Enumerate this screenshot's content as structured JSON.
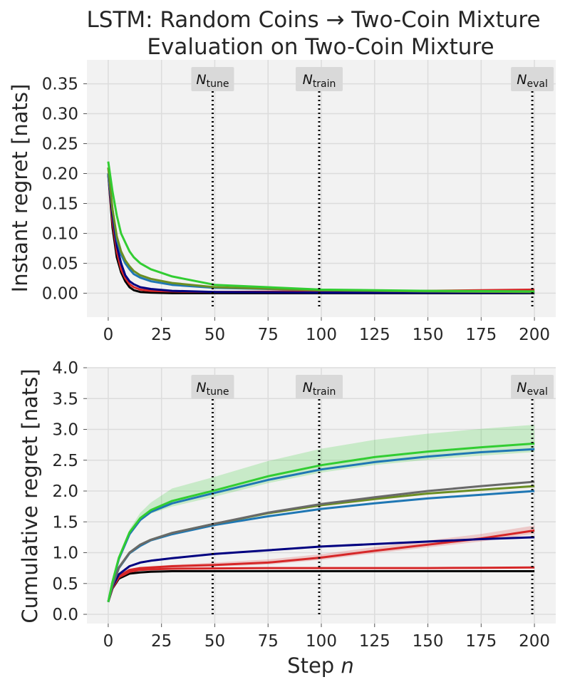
{
  "figure": {
    "title_line1": "LSTM: Random Coins → Two-Coin Mixture",
    "title_line2": "Evaluation on Two-Coin Mixture",
    "xlabel_text": "Step ",
    "xlabel_var": "n"
  },
  "vlines": [
    {
      "x": 49,
      "label_main": "N",
      "label_sub": "tune"
    },
    {
      "x": 99,
      "label_main": "N",
      "label_sub": "train"
    },
    {
      "x": 199,
      "label_main": "N",
      "label_sub": "eval"
    }
  ],
  "chart_data": [
    {
      "type": "line",
      "ylabel": "Instant regret [nats]",
      "xlim": [
        -10,
        210
      ],
      "ylim": [
        -0.04,
        0.39
      ],
      "xticks": [
        0,
        25,
        50,
        75,
        100,
        125,
        150,
        175,
        200
      ],
      "xtick_labels": [
        "0",
        "25",
        "50",
        "75",
        "100",
        "125",
        "150",
        "175",
        "200"
      ],
      "yticks": [
        0.0,
        0.05,
        0.1,
        0.15,
        0.2,
        0.25,
        0.3,
        0.35
      ],
      "ytick_labels": [
        "0.00",
        "0.05",
        "0.10",
        "0.15",
        "0.20",
        "0.25",
        "0.30",
        "0.35"
      ],
      "grid": true,
      "series": [
        {
          "color": "#000000",
          "x": [
            0,
            2,
            4,
            6,
            8,
            10,
            12,
            15,
            20,
            30,
            50,
            100,
            150,
            200
          ],
          "y": [
            0.2,
            0.11,
            0.06,
            0.035,
            0.02,
            0.01,
            0.005,
            0.002,
            0.001,
            0.0,
            0.0,
            0.0,
            0.0,
            0.0
          ]
        },
        {
          "color": "#d62728",
          "x": [
            0,
            2,
            4,
            6,
            8,
            10,
            12,
            15,
            20,
            30,
            50,
            100,
            150,
            200
          ],
          "y": [
            0.2,
            0.12,
            0.07,
            0.04,
            0.025,
            0.015,
            0.01,
            0.006,
            0.004,
            0.003,
            0.002,
            0.003,
            0.004,
            0.006
          ]
        },
        {
          "color": "#000080",
          "x": [
            0,
            2,
            4,
            6,
            8,
            10,
            12,
            15,
            20,
            30,
            50,
            100,
            150,
            200
          ],
          "y": [
            0.2,
            0.13,
            0.08,
            0.05,
            0.03,
            0.02,
            0.015,
            0.01,
            0.007,
            0.004,
            0.002,
            0.001,
            0.001,
            0.001
          ]
        },
        {
          "color": "#1f77b4",
          "x": [
            0,
            2,
            4,
            6,
            8,
            10,
            12,
            15,
            20,
            30,
            50,
            100,
            150,
            200
          ],
          "y": [
            0.2,
            0.14,
            0.09,
            0.065,
            0.05,
            0.04,
            0.032,
            0.026,
            0.02,
            0.014,
            0.009,
            0.005,
            0.003,
            0.002
          ]
        },
        {
          "color": "#6b8e23",
          "x": [
            0,
            2,
            4,
            6,
            8,
            10,
            12,
            15,
            20,
            30,
            50,
            100,
            150,
            200
          ],
          "y": [
            0.21,
            0.14,
            0.095,
            0.07,
            0.055,
            0.045,
            0.037,
            0.03,
            0.024,
            0.017,
            0.01,
            0.005,
            0.003,
            0.002
          ]
        },
        {
          "color": "#32cd32",
          "x": [
            0,
            2,
            4,
            6,
            8,
            10,
            12,
            15,
            20,
            30,
            50,
            100,
            150,
            200
          ],
          "y": [
            0.22,
            0.17,
            0.13,
            0.1,
            0.085,
            0.07,
            0.06,
            0.05,
            0.04,
            0.028,
            0.014,
            0.006,
            0.004,
            0.003
          ]
        }
      ]
    },
    {
      "type": "line",
      "ylabel": "Cumulative regret [nats]",
      "xlim": [
        -10,
        210
      ],
      "ylim": [
        -0.15,
        4.0
      ],
      "xticks": [
        0,
        25,
        50,
        75,
        100,
        125,
        150,
        175,
        200
      ],
      "xtick_labels": [
        "0",
        "25",
        "50",
        "75",
        "100",
        "125",
        "150",
        "175",
        "200"
      ],
      "yticks": [
        0.0,
        0.5,
        1.0,
        1.5,
        2.0,
        2.5,
        3.0,
        3.5,
        4.0
      ],
      "ytick_labels": [
        "0.0",
        "0.5",
        "1.0",
        "1.5",
        "2.0",
        "2.5",
        "3.0",
        "3.5",
        "4.0"
      ],
      "grid": true,
      "series": [
        {
          "color": "#000000",
          "x": [
            0,
            2,
            5,
            10,
            15,
            20,
            30,
            50,
            75,
            100,
            125,
            150,
            175,
            200
          ],
          "y": [
            0.2,
            0.42,
            0.58,
            0.66,
            0.68,
            0.69,
            0.7,
            0.7,
            0.7,
            0.7,
            0.7,
            0.7,
            0.7,
            0.7
          ]
        },
        {
          "color": "#d62728",
          "x": [
            0,
            2,
            5,
            10,
            15,
            20,
            30,
            50,
            75,
            100,
            125,
            150,
            175,
            200
          ],
          "y": [
            0.2,
            0.43,
            0.6,
            0.69,
            0.72,
            0.73,
            0.74,
            0.745,
            0.75,
            0.75,
            0.75,
            0.75,
            0.755,
            0.76
          ]
        },
        {
          "color": "#d62728",
          "x": [
            0,
            2,
            5,
            10,
            15,
            20,
            30,
            50,
            75,
            100,
            125,
            150,
            175,
            200
          ],
          "y": [
            0.2,
            0.44,
            0.62,
            0.72,
            0.75,
            0.76,
            0.78,
            0.8,
            0.84,
            0.92,
            1.03,
            1.13,
            1.23,
            1.36
          ]
        },
        {
          "color": "#000080",
          "x": [
            0,
            2,
            5,
            10,
            15,
            20,
            30,
            50,
            75,
            100,
            125,
            150,
            175,
            200
          ],
          "y": [
            0.2,
            0.45,
            0.65,
            0.78,
            0.84,
            0.87,
            0.91,
            0.98,
            1.04,
            1.1,
            1.14,
            1.18,
            1.22,
            1.25
          ]
        },
        {
          "color": "#1f77b4",
          "x": [
            0,
            2,
            5,
            10,
            15,
            20,
            30,
            50,
            75,
            100,
            125,
            150,
            175,
            200
          ],
          "y": [
            0.2,
            0.47,
            0.75,
            0.99,
            1.11,
            1.2,
            1.3,
            1.45,
            1.59,
            1.71,
            1.8,
            1.88,
            1.94,
            2.0
          ]
        },
        {
          "color": "#6b8e23",
          "x": [
            0,
            2,
            5,
            10,
            15,
            20,
            30,
            50,
            75,
            100,
            125,
            150,
            175,
            200
          ],
          "y": [
            0.2,
            0.47,
            0.76,
            1.0,
            1.13,
            1.21,
            1.32,
            1.47,
            1.64,
            1.77,
            1.87,
            1.96,
            2.02,
            2.08
          ]
        },
        {
          "color": "#696969",
          "x": [
            0,
            2,
            5,
            10,
            15,
            20,
            30,
            50,
            75,
            100,
            125,
            150,
            175,
            200
          ],
          "y": [
            0.2,
            0.47,
            0.76,
            1.0,
            1.13,
            1.21,
            1.32,
            1.47,
            1.65,
            1.79,
            1.9,
            2.0,
            2.08,
            2.15
          ]
        },
        {
          "color": "#1f77b4",
          "x": [
            0,
            2,
            5,
            10,
            15,
            20,
            30,
            50,
            75,
            100,
            125,
            150,
            175,
            200
          ],
          "y": [
            0.2,
            0.52,
            0.9,
            1.3,
            1.53,
            1.66,
            1.8,
            1.97,
            2.18,
            2.35,
            2.47,
            2.56,
            2.63,
            2.68
          ]
        },
        {
          "color": "#32cd32",
          "x": [
            0,
            2,
            5,
            10,
            15,
            20,
            30,
            50,
            75,
            100,
            125,
            150,
            175,
            200
          ],
          "y": [
            0.2,
            0.53,
            0.92,
            1.33,
            1.56,
            1.69,
            1.84,
            2.01,
            2.24,
            2.42,
            2.55,
            2.64,
            2.71,
            2.77
          ]
        }
      ]
    }
  ]
}
